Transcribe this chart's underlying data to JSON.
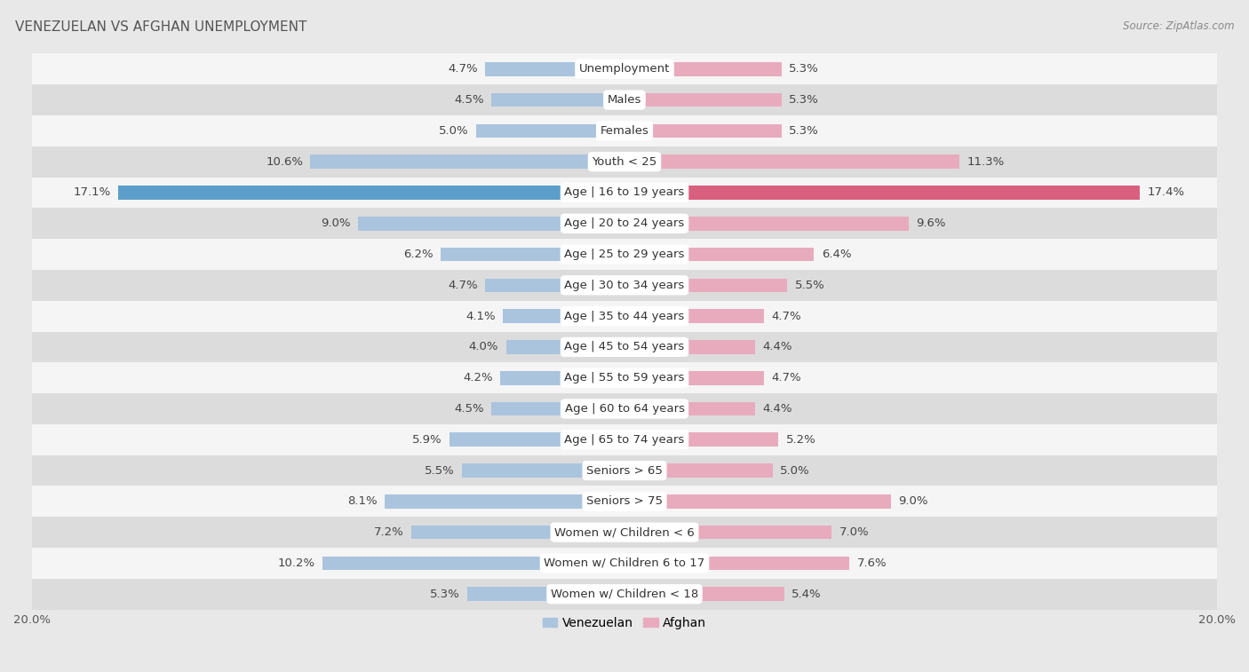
{
  "title": "VENEZUELAN VS AFGHAN UNEMPLOYMENT",
  "source": "Source: ZipAtlas.com",
  "categories": [
    "Unemployment",
    "Males",
    "Females",
    "Youth < 25",
    "Age | 16 to 19 years",
    "Age | 20 to 24 years",
    "Age | 25 to 29 years",
    "Age | 30 to 34 years",
    "Age | 35 to 44 years",
    "Age | 45 to 54 years",
    "Age | 55 to 59 years",
    "Age | 60 to 64 years",
    "Age | 65 to 74 years",
    "Seniors > 65",
    "Seniors > 75",
    "Women w/ Children < 6",
    "Women w/ Children 6 to 17",
    "Women w/ Children < 18"
  ],
  "venezuelan": [
    4.7,
    4.5,
    5.0,
    10.6,
    17.1,
    9.0,
    6.2,
    4.7,
    4.1,
    4.0,
    4.2,
    4.5,
    5.9,
    5.5,
    8.1,
    7.2,
    10.2,
    5.3
  ],
  "afghan": [
    5.3,
    5.3,
    5.3,
    11.3,
    17.4,
    9.6,
    6.4,
    5.5,
    4.7,
    4.4,
    4.7,
    4.4,
    5.2,
    5.0,
    9.0,
    7.0,
    7.6,
    5.4
  ],
  "venezuelan_color": "#aac4de",
  "afghan_color": "#e8abbe",
  "venezuelan_color_highlight": "#5b9ec9",
  "afghan_color_highlight": "#d95f7f",
  "highlight_row": 4,
  "max_val": 20.0,
  "background_color": "#e8e8e8",
  "row_bg_even": "#f5f5f5",
  "row_bg_odd": "#dcdcdc",
  "bar_height": 0.45,
  "label_fontsize": 9.5,
  "category_fontsize": 9.5,
  "title_fontsize": 11,
  "legend_fontsize": 10
}
